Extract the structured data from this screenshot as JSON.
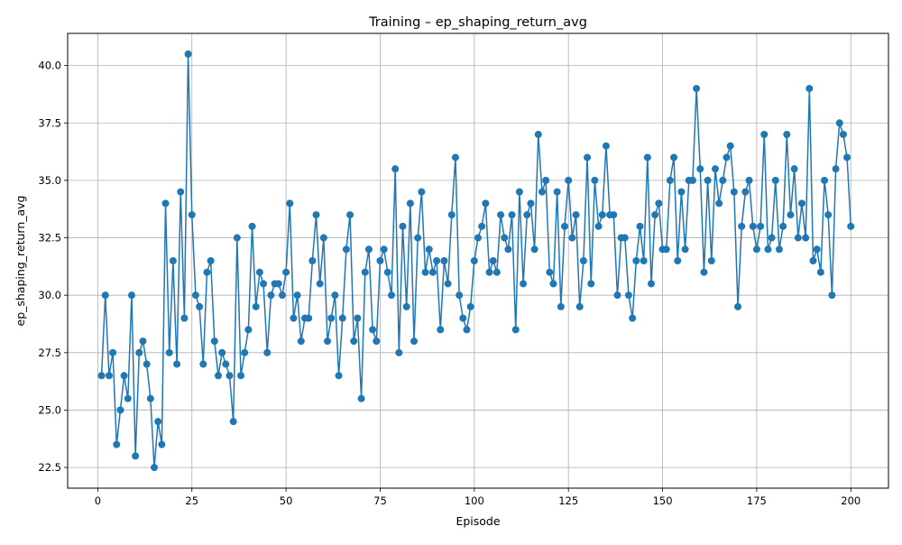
{
  "chart_data": {
    "type": "line",
    "title": "Training – ep_shaping_return_avg",
    "xlabel": "Episode",
    "ylabel": "ep_shaping_return_avg",
    "xlim": [
      -8,
      210
    ],
    "ylim": [
      21.6,
      41.4
    ],
    "xticks": [
      0,
      25,
      50,
      75,
      100,
      125,
      150,
      175,
      200
    ],
    "yticks": [
      22.5,
      25.0,
      27.5,
      30.0,
      32.5,
      35.0,
      37.5,
      40.0
    ],
    "xtick_labels": [
      "0",
      "25",
      "50",
      "75",
      "100",
      "125",
      "150",
      "175",
      "200"
    ],
    "ytick_labels": [
      "22.5",
      "25.0",
      "27.5",
      "30.0",
      "32.5",
      "35.0",
      "37.5",
      "40.0"
    ],
    "grid": true,
    "line_color": "#1f77b4",
    "marker": "circle",
    "series": [
      {
        "x": [
          1,
          2,
          3,
          4,
          5,
          6,
          7,
          8,
          9,
          10,
          11,
          12,
          13,
          14,
          15,
          16,
          17,
          18,
          19,
          20,
          21,
          22,
          23,
          24,
          25,
          26,
          27,
          28,
          29,
          30,
          31,
          32,
          33,
          34,
          35,
          36,
          37,
          38,
          39,
          40,
          41,
          42,
          43,
          44,
          45,
          46,
          47,
          48,
          49,
          50,
          51,
          52,
          53,
          54,
          55,
          56,
          57,
          58,
          59,
          60,
          61,
          62,
          63,
          64,
          65,
          66,
          67,
          68,
          69,
          70,
          71,
          72,
          73,
          74,
          75,
          76,
          77,
          78,
          79,
          80,
          81,
          82,
          83,
          84,
          85,
          86,
          87,
          88,
          89,
          90,
          91,
          92,
          93,
          94,
          95,
          96,
          97,
          98,
          99,
          100,
          101,
          102,
          103,
          104,
          105,
          106,
          107,
          108,
          109,
          110,
          111,
          112,
          113,
          114,
          115,
          116,
          117,
          118,
          119,
          120,
          121,
          122,
          123,
          124,
          125,
          126,
          127,
          128,
          129,
          130,
          131,
          132,
          133,
          134,
          135,
          136,
          137,
          138,
          139,
          140,
          141,
          142,
          143,
          144,
          145,
          146,
          147,
          148,
          149,
          150,
          151,
          152,
          153,
          154,
          155,
          156,
          157,
          158,
          159,
          160,
          161,
          162,
          163,
          164,
          165,
          166,
          167,
          168,
          169,
          170,
          171,
          172,
          173,
          174,
          175,
          176,
          177,
          178,
          179,
          180,
          181,
          182,
          183,
          184,
          185,
          186,
          187,
          188,
          189,
          190,
          191,
          192,
          193,
          194,
          195,
          196,
          197,
          198,
          199,
          200
        ],
        "y": [
          26.5,
          30.0,
          26.5,
          27.5,
          23.5,
          25.0,
          26.5,
          25.5,
          30.0,
          23.0,
          27.5,
          28.0,
          27.0,
          25.5,
          22.5,
          24.5,
          23.5,
          34.0,
          27.5,
          31.5,
          27.0,
          34.5,
          29.0,
          40.5,
          33.5,
          30.0,
          29.5,
          27.0,
          31.0,
          31.5,
          28.0,
          26.5,
          27.5,
          27.0,
          26.5,
          24.5,
          32.5,
          26.5,
          27.5,
          28.5,
          33.0,
          29.5,
          31.0,
          30.5,
          27.5,
          30.0,
          30.5,
          30.5,
          30.0,
          31.0,
          34.0,
          29.0,
          30.0,
          28.0,
          29.0,
          29.0,
          31.5,
          33.5,
          30.5,
          32.5,
          28.0,
          29.0,
          30.0,
          26.5,
          29.0,
          32.0,
          33.5,
          28.0,
          29.0,
          25.5,
          31.0,
          32.0,
          28.5,
          28.0,
          31.5,
          32.0,
          31.0,
          30.0,
          35.5,
          27.5,
          33.0,
          29.5,
          34.0,
          28.0,
          32.5,
          34.5,
          31.0,
          32.0,
          31.0,
          31.5,
          28.5,
          31.5,
          30.5,
          33.5,
          36.0,
          30.0,
          29.0,
          28.5,
          29.5,
          31.5,
          32.5,
          33.0,
          34.0,
          31.0,
          31.5,
          31.0,
          33.5,
          32.5,
          32.0,
          33.5,
          28.5,
          34.5,
          30.5,
          33.5,
          34.0,
          32.0,
          37.0,
          34.5,
          35.0,
          31.0,
          30.5,
          34.5,
          29.5,
          33.0,
          35.0,
          32.5,
          33.5,
          29.5,
          31.5,
          36.0,
          30.5,
          35.0,
          33.0,
          33.5,
          36.5,
          33.5,
          33.5,
          30.0,
          32.5,
          32.5,
          30.0,
          29.0,
          31.5,
          33.0,
          31.5,
          36.0,
          30.5,
          33.5,
          34.0,
          32.0,
          32.0,
          35.0,
          36.0,
          31.5,
          34.5,
          32.0,
          35.0,
          35.0,
          39.0,
          35.5,
          31.0,
          35.0,
          31.5,
          35.5,
          34.0,
          35.0,
          36.0,
          36.5,
          34.5,
          29.5,
          33.0,
          34.5,
          35.0,
          33.0,
          32.0,
          33.0,
          37.0,
          32.0,
          32.5,
          35.0,
          32.0,
          33.0,
          37.0,
          33.5,
          35.5,
          32.5,
          34.0,
          32.5,
          39.0,
          31.5,
          32.0,
          31.0,
          35.0,
          33.5,
          30.0,
          35.5,
          37.5,
          37.0,
          36.0,
          33.0
        ]
      }
    ]
  }
}
